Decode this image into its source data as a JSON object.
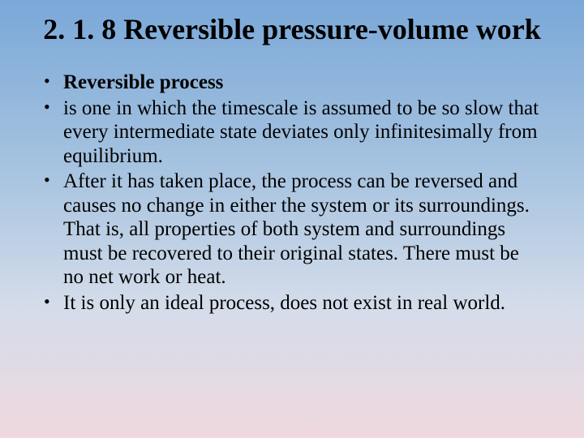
{
  "slide": {
    "title": "2. 1. 8 Reversible pressure-volume work",
    "bullets": [
      {
        "text": "Reversible process",
        "bold": true
      },
      {
        "text": "is one in which the timescale is assumed to be so slow that every intermediate state deviates only infinitesimally from equilibrium.",
        "bold": false
      },
      {
        "text": " After it has taken place, the process can be reversed and causes no change in either the system or its surroundings. That is, all properties of both system and surroundings must be recovered to their original states. There must be no net work or heat.",
        "bold": false
      },
      {
        "text": "It is only an ideal process, does not exist in real world.",
        "bold": false
      }
    ]
  },
  "colors": {
    "text": "#000000",
    "gradient_top": "#7aa8d8",
    "gradient_mid1": "#a8c4e0",
    "gradient_mid2": "#d4dcea",
    "gradient_bottom": "#efd8de"
  },
  "typography": {
    "title_fontsize": 36,
    "body_fontsize": 25,
    "font_family": "Times New Roman"
  }
}
